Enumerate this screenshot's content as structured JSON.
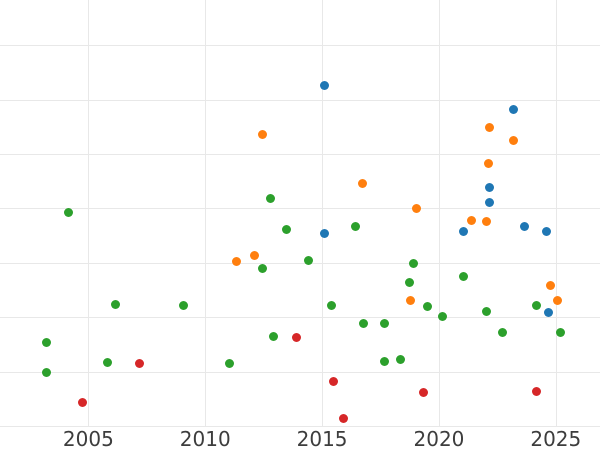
{
  "figure": {
    "background": "#ffffff",
    "grid_color": "#e8e8e8",
    "tick_label_color": "#3d3d3d"
  },
  "chart_data": {
    "type": "scatter",
    "title": "",
    "xlabel": "",
    "ylabel": "",
    "grid": true,
    "legend": "none",
    "x_ticks": [
      2005,
      2010,
      2015,
      2020,
      2025
    ],
    "x_tick_labels": [
      "2005",
      "2010",
      "2015",
      "2020",
      "2025"
    ],
    "x_domain": [
      2001.22,
      2026.89
    ],
    "y_domain": [
      0,
      7.83
    ],
    "y_gridline_values": [
      0,
      1,
      2,
      3,
      4,
      5,
      6,
      7
    ],
    "y_tick_labels_visible": false,
    "series": [
      {
        "name": "blue",
        "color": "#1f77b4",
        "points": [
          [
            2015.12,
            6.25
          ],
          [
            2023.17,
            5.82
          ],
          [
            2022.18,
            4.39
          ],
          [
            2022.18,
            4.11
          ],
          [
            2023.68,
            3.67
          ],
          [
            2021.03,
            3.58
          ],
          [
            2024.62,
            3.58
          ],
          [
            2015.12,
            3.54
          ],
          [
            2024.7,
            2.09
          ]
        ]
      },
      {
        "name": "orange",
        "color": "#ff7f0e",
        "points": [
          [
            2022.18,
            5.49
          ],
          [
            2012.47,
            5.35
          ],
          [
            2023.17,
            5.25
          ],
          [
            2022.1,
            4.83
          ],
          [
            2016.75,
            4.46
          ],
          [
            2019.06,
            3.99
          ],
          [
            2021.41,
            3.78
          ],
          [
            2022.05,
            3.75
          ],
          [
            2012.1,
            3.14
          ],
          [
            2011.35,
            3.03
          ],
          [
            2024.79,
            2.59
          ],
          [
            2018.78,
            2.3
          ],
          [
            2025.09,
            2.3
          ]
        ]
      },
      {
        "name": "green",
        "color": "#2ca02c",
        "points": [
          [
            2012.81,
            4.19
          ],
          [
            2004.17,
            3.92
          ],
          [
            2016.45,
            3.66
          ],
          [
            2013.46,
            3.62
          ],
          [
            2014.4,
            3.05
          ],
          [
            2018.89,
            2.98
          ],
          [
            2012.47,
            2.9
          ],
          [
            2021.03,
            2.75
          ],
          [
            2018.76,
            2.63
          ],
          [
            2006.18,
            2.24
          ],
          [
            2009.09,
            2.22
          ],
          [
            2015.42,
            2.21
          ],
          [
            2024.19,
            2.21
          ],
          [
            2019.49,
            2.19
          ],
          [
            2022.05,
            2.11
          ],
          [
            2020.17,
            2.02
          ],
          [
            2016.79,
            1.89
          ],
          [
            2017.69,
            1.88
          ],
          [
            2025.22,
            1.72
          ],
          [
            2022.74,
            1.71
          ],
          [
            2012.9,
            1.64
          ],
          [
            2003.23,
            1.54
          ],
          [
            2018.35,
            1.23
          ],
          [
            2017.69,
            1.18
          ],
          [
            2005.84,
            1.16
          ],
          [
            2011.06,
            1.15
          ],
          [
            2003.23,
            0.99
          ]
        ]
      },
      {
        "name": "red",
        "color": "#d62728",
        "points": [
          [
            2013.91,
            1.62
          ],
          [
            2007.2,
            1.14
          ],
          [
            2015.48,
            0.81
          ],
          [
            2019.36,
            0.62
          ],
          [
            2024.19,
            0.63
          ],
          [
            2004.73,
            0.44
          ],
          [
            2015.9,
            0.14
          ]
        ]
      }
    ]
  }
}
